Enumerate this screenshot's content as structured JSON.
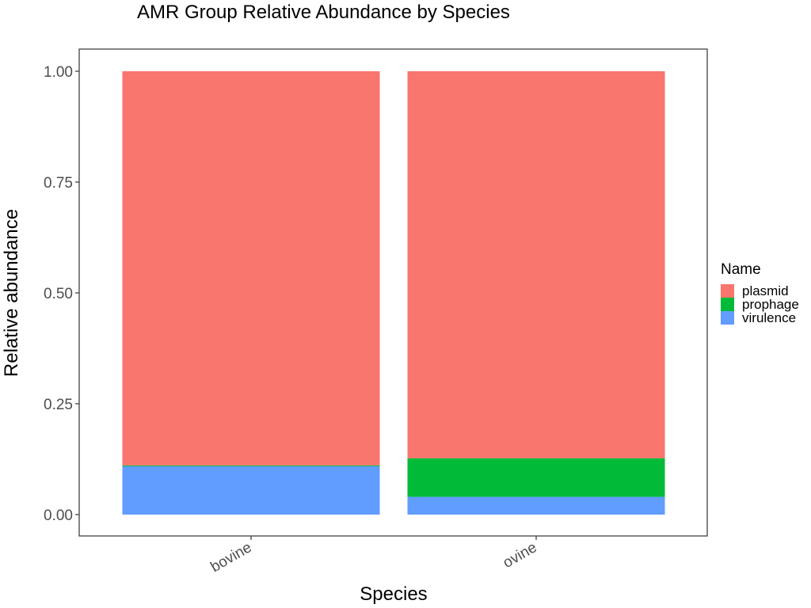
{
  "chart_data": {
    "type": "bar",
    "stacked": true,
    "title": "AMR Group Relative Abundance by Species",
    "xlabel": "Species",
    "ylabel": "Relative abundance",
    "categories": [
      "bovine",
      "ovine"
    ],
    "ylim": [
      0,
      1
    ],
    "yticks": [
      "0.00",
      "0.25",
      "0.50",
      "0.75",
      "1.00"
    ],
    "ytick_values": [
      0,
      0.25,
      0.5,
      0.75,
      1.0
    ],
    "grid": false,
    "legend": {
      "title": "Name",
      "position": "right"
    },
    "series": [
      {
        "name": "virulence",
        "color": "#619CFF",
        "values": [
          0.109,
          0.04
        ]
      },
      {
        "name": "prophage",
        "color": "#00BA38",
        "values": [
          0.002,
          0.087
        ]
      },
      {
        "name": "plasmid",
        "color": "#F8766D",
        "values": [
          0.889,
          0.873
        ]
      }
    ],
    "legend_order": [
      "plasmid",
      "prophage",
      "virulence"
    ]
  }
}
